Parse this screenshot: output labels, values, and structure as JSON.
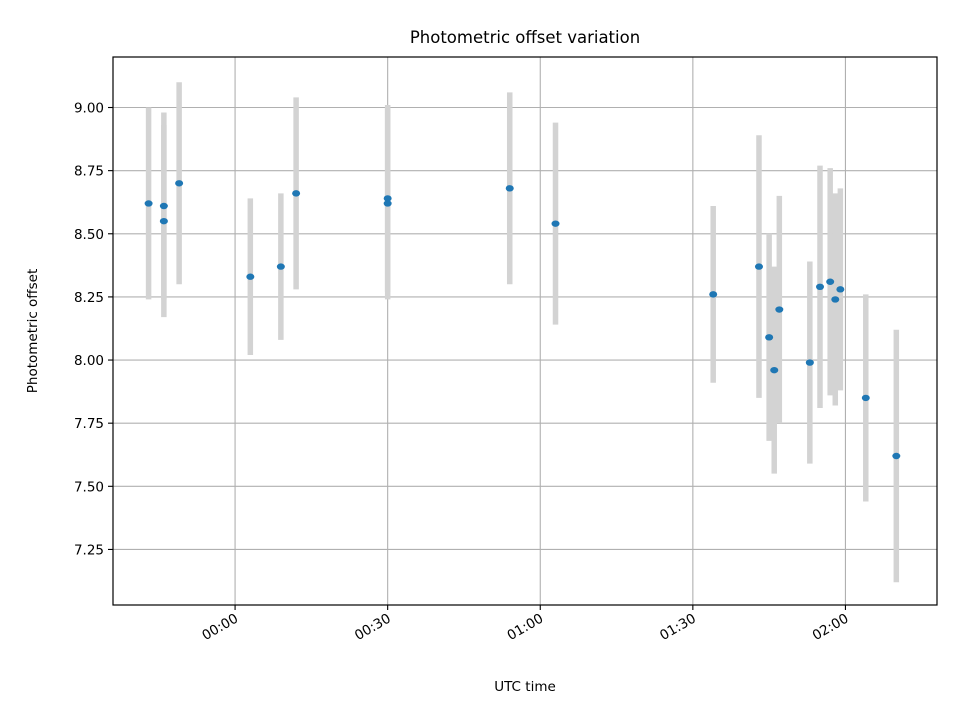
{
  "chart_data": {
    "type": "scatter",
    "title": "Photometric offset variation",
    "xlabel": "UTC time",
    "ylabel": "Photometric offset",
    "x_ticks": [
      "00:00",
      "00:30",
      "01:00",
      "01:30",
      "02:00"
    ],
    "y_ticks": [
      "7.25",
      "7.50",
      "7.75",
      "8.00",
      "8.25",
      "8.50",
      "8.75",
      "9.00"
    ],
    "xlim": [
      "-00:24",
      "02:18"
    ],
    "ylim": [
      7.03,
      9.2
    ],
    "grid": true,
    "colors": {
      "point": "#1f77b4",
      "errorbar": "#d3d3d3",
      "grid": "#b0b0b0"
    },
    "points": [
      {
        "x": "-00:17",
        "y": 8.62,
        "yerr": 0.38
      },
      {
        "x": "-00:14",
        "y": 8.61,
        "yerr": 0.37
      },
      {
        "x": "-00:14",
        "y": 8.55,
        "yerr": 0.38
      },
      {
        "x": "-00:11",
        "y": 8.7,
        "yerr": 0.4
      },
      {
        "x": "00:03",
        "y": 8.33,
        "yerr": 0.31
      },
      {
        "x": "00:09",
        "y": 8.37,
        "yerr": 0.29
      },
      {
        "x": "00:12",
        "y": 8.66,
        "yerr": 0.38
      },
      {
        "x": "00:30",
        "y": 8.62,
        "yerr": 0.38
      },
      {
        "x": "00:30",
        "y": 8.64,
        "yerr": 0.37
      },
      {
        "x": "00:54",
        "y": 8.68,
        "yerr": 0.38
      },
      {
        "x": "01:03",
        "y": 8.54,
        "yerr": 0.4
      },
      {
        "x": "01:34",
        "y": 8.26,
        "yerr": 0.35
      },
      {
        "x": "01:43",
        "y": 8.37,
        "yerr": 0.52
      },
      {
        "x": "01:45",
        "y": 8.09,
        "yerr": 0.41
      },
      {
        "x": "01:46",
        "y": 7.96,
        "yerr": 0.41
      },
      {
        "x": "01:47",
        "y": 8.2,
        "yerr": 0.45
      },
      {
        "x": "01:53",
        "y": 7.99,
        "yerr": 0.4
      },
      {
        "x": "01:55",
        "y": 8.29,
        "yerr": 0.48
      },
      {
        "x": "01:57",
        "y": 8.31,
        "yerr": 0.45
      },
      {
        "x": "01:58",
        "y": 8.24,
        "yerr": 0.42
      },
      {
        "x": "01:59",
        "y": 8.28,
        "yerr": 0.4
      },
      {
        "x": "02:04",
        "y": 7.85,
        "yerr": 0.41
      },
      {
        "x": "02:10",
        "y": 7.62,
        "yerr": 0.5
      }
    ]
  }
}
